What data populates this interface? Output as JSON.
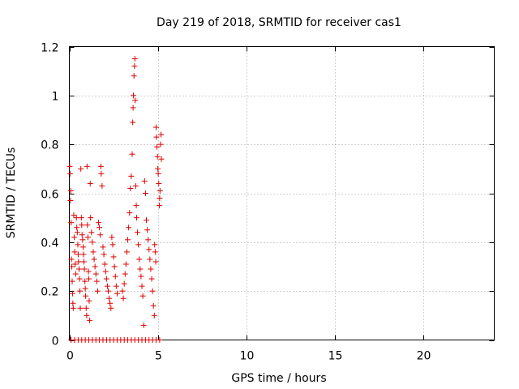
{
  "chart_data": {
    "type": "scatter",
    "title": "Day 219 of 2018, SRMTID for receiver cas1",
    "xlabel": "GPS time / hours",
    "ylabel": "SRMTID / TECUs",
    "xlim": [
      0,
      24
    ],
    "ylim": [
      0,
      1.2
    ],
    "x_ticks": [
      0,
      5,
      10,
      15,
      20
    ],
    "x_tick_labels": [
      "0",
      "5",
      "10",
      "15",
      "20"
    ],
    "y_ticks": [
      0,
      0.2,
      0.4,
      0.6,
      0.8,
      1.0,
      1.2
    ],
    "y_tick_labels": [
      "0",
      "0.2",
      "0.4",
      "0.6",
      "0.8",
      "1",
      "1.2"
    ],
    "grid": true,
    "marker": "+",
    "color": "#dd0000",
    "series": [
      {
        "name": "SRMTID",
        "points": [
          [
            0.02,
            0.71
          ],
          [
            0.04,
            0.68
          ],
          [
            0.06,
            0.57
          ],
          [
            0.08,
            0.61
          ],
          [
            0.1,
            0.48
          ],
          [
            0.12,
            0.33
          ],
          [
            0.14,
            0.3
          ],
          [
            0.16,
            0.24
          ],
          [
            0.18,
            0.19
          ],
          [
            0.2,
            0.15
          ],
          [
            0.22,
            0.13
          ],
          [
            0.25,
            0.51
          ],
          [
            0.28,
            0.42
          ],
          [
            0.3,
            0.36
          ],
          [
            0.33,
            0.31
          ],
          [
            0.36,
            0.27
          ],
          [
            0.4,
            0.5
          ],
          [
            0.42,
            0.46
          ],
          [
            0.45,
            0.44
          ],
          [
            0.48,
            0.39
          ],
          [
            0.5,
            0.35
          ],
          [
            0.52,
            0.32
          ],
          [
            0.55,
            0.29
          ],
          [
            0.58,
            0.25
          ],
          [
            0.6,
            0.2
          ],
          [
            0.62,
            0.13
          ],
          [
            0.65,
            0.7
          ],
          [
            0.68,
            0.5
          ],
          [
            0.7,
            0.47
          ],
          [
            0.72,
            0.43
          ],
          [
            0.75,
            0.41
          ],
          [
            0.78,
            0.38
          ],
          [
            0.8,
            0.35
          ],
          [
            0.82,
            0.32
          ],
          [
            0.85,
            0.29
          ],
          [
            0.88,
            0.24
          ],
          [
            0.9,
            0.21
          ],
          [
            0.92,
            0.18
          ],
          [
            0.95,
            0.13
          ],
          [
            0.98,
            0.1
          ],
          [
            1.0,
            0.71
          ],
          [
            1.02,
            0.47
          ],
          [
            1.05,
            0.42
          ],
          [
            1.08,
            0.28
          ],
          [
            1.1,
            0.25
          ],
          [
            1.12,
            0.16
          ],
          [
            1.15,
            0.08
          ],
          [
            1.18,
            0.64
          ],
          [
            1.2,
            0.5
          ],
          [
            1.25,
            0.44
          ],
          [
            1.3,
            0.4
          ],
          [
            1.35,
            0.36
          ],
          [
            1.4,
            0.33
          ],
          [
            1.45,
            0.3
          ],
          [
            1.5,
            0.27
          ],
          [
            1.55,
            0.24
          ],
          [
            1.6,
            0.2
          ],
          [
            1.65,
            0.48
          ],
          [
            1.7,
            0.46
          ],
          [
            1.75,
            0.43
          ],
          [
            1.78,
            0.71
          ],
          [
            1.8,
            0.68
          ],
          [
            1.85,
            0.63
          ],
          [
            1.9,
            0.38
          ],
          [
            1.95,
            0.35
          ],
          [
            2.0,
            0.31
          ],
          [
            2.05,
            0.28
          ],
          [
            2.1,
            0.25
          ],
          [
            2.15,
            0.22
          ],
          [
            2.2,
            0.2
          ],
          [
            2.25,
            0.17
          ],
          [
            2.3,
            0.15
          ],
          [
            2.35,
            0.13
          ],
          [
            2.4,
            0.42
          ],
          [
            2.45,
            0.39
          ],
          [
            2.5,
            0.34
          ],
          [
            2.55,
            0.3
          ],
          [
            2.6,
            0.26
          ],
          [
            2.65,
            0.22
          ],
          [
            2.7,
            0.19
          ],
          [
            3.0,
            0.2
          ],
          [
            3.05,
            0.17
          ],
          [
            3.1,
            0.23
          ],
          [
            3.15,
            0.27
          ],
          [
            3.2,
            0.31
          ],
          [
            3.25,
            0.36
          ],
          [
            3.3,
            0.41
          ],
          [
            3.35,
            0.46
          ],
          [
            3.4,
            0.52
          ],
          [
            3.45,
            0.62
          ],
          [
            3.5,
            0.67
          ],
          [
            3.55,
            0.76
          ],
          [
            3.58,
            0.89
          ],
          [
            3.6,
            0.95
          ],
          [
            3.62,
            1.0
          ],
          [
            3.65,
            1.08
          ],
          [
            3.68,
            1.12
          ],
          [
            3.7,
            1.15
          ],
          [
            3.72,
            0.98
          ],
          [
            3.75,
            0.63
          ],
          [
            3.78,
            0.55
          ],
          [
            3.8,
            0.5
          ],
          [
            3.85,
            0.44
          ],
          [
            3.9,
            0.39
          ],
          [
            3.95,
            0.33
          ],
          [
            4.0,
            0.29
          ],
          [
            4.05,
            0.26
          ],
          [
            4.1,
            0.22
          ],
          [
            4.15,
            0.18
          ],
          [
            4.2,
            0.06
          ],
          [
            4.25,
            0.65
          ],
          [
            4.3,
            0.6
          ],
          [
            4.35,
            0.49
          ],
          [
            4.4,
            0.45
          ],
          [
            4.45,
            0.41
          ],
          [
            4.5,
            0.37
          ],
          [
            4.55,
            0.33
          ],
          [
            4.6,
            0.29
          ],
          [
            4.65,
            0.25
          ],
          [
            4.7,
            0.2
          ],
          [
            4.75,
            0.14
          ],
          [
            4.8,
            0.1
          ],
          [
            4.82,
            0.39
          ],
          [
            4.85,
            0.36
          ],
          [
            4.88,
            0.32
          ],
          [
            4.9,
            0.87
          ],
          [
            4.92,
            0.83
          ],
          [
            4.95,
            0.79
          ],
          [
            4.98,
            0.75
          ],
          [
            5.0,
            0.7
          ],
          [
            5.02,
            0.68
          ],
          [
            5.05,
            0.64
          ],
          [
            5.08,
            0.55
          ],
          [
            5.1,
            0.58
          ],
          [
            5.12,
            0.61
          ],
          [
            5.15,
            0.8
          ],
          [
            5.18,
            0.84
          ],
          [
            5.2,
            0.74
          ],
          [
            0.1,
            0.0
          ],
          [
            0.3,
            0.0
          ],
          [
            0.5,
            0.0
          ],
          [
            0.7,
            0.0
          ],
          [
            0.9,
            0.0
          ],
          [
            1.1,
            0.0
          ],
          [
            1.3,
            0.0
          ],
          [
            1.5,
            0.0
          ],
          [
            1.7,
            0.0
          ],
          [
            1.9,
            0.0
          ],
          [
            2.1,
            0.0
          ],
          [
            2.3,
            0.0
          ],
          [
            2.5,
            0.0
          ],
          [
            2.7,
            0.0
          ],
          [
            2.9,
            0.0
          ],
          [
            3.1,
            0.0
          ],
          [
            3.3,
            0.0
          ],
          [
            3.5,
            0.0
          ],
          [
            3.7,
            0.0
          ],
          [
            3.9,
            0.0
          ],
          [
            4.1,
            0.0
          ],
          [
            4.3,
            0.0
          ],
          [
            4.5,
            0.0
          ],
          [
            4.7,
            0.0
          ],
          [
            4.9,
            0.0
          ],
          [
            5.1,
            0.0
          ]
        ]
      }
    ]
  }
}
